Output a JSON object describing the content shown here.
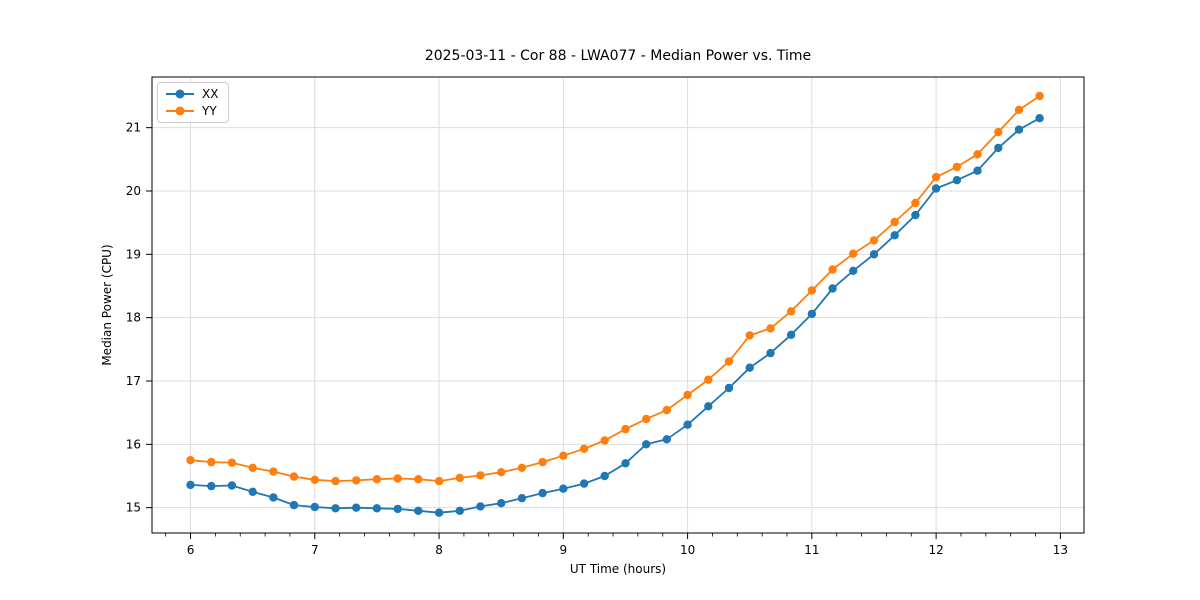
{
  "chart_data": {
    "type": "line",
    "title": "2025-03-11 - Cor 88 - LWA077 - Median Power vs. Time",
    "xlabel": "UT Time (hours)",
    "ylabel": "Median Power (CPU)",
    "xlim": [
      5.69,
      13.19
    ],
    "ylim": [
      14.6,
      21.8
    ],
    "x_ticks": [
      6,
      7,
      8,
      9,
      10,
      11,
      12,
      13
    ],
    "y_ticks": [
      15,
      16,
      17,
      18,
      19,
      20,
      21
    ],
    "x_minor_tick_step": 0.2,
    "grid": true,
    "legend_position": "upper-left",
    "marker": "circle",
    "x": [
      6.0,
      6.167,
      6.333,
      6.5,
      6.667,
      6.833,
      7.0,
      7.167,
      7.333,
      7.5,
      7.667,
      7.833,
      8.0,
      8.167,
      8.333,
      8.5,
      8.667,
      8.833,
      9.0,
      9.167,
      9.333,
      9.5,
      9.667,
      9.833,
      10.0,
      10.167,
      10.333,
      10.5,
      10.667,
      10.833,
      11.0,
      11.167,
      11.333,
      11.5,
      11.667,
      11.833,
      12.0,
      12.167,
      12.333,
      12.5,
      12.667,
      12.833
    ],
    "series": [
      {
        "name": "XX",
        "color": "#1f77b4",
        "values": [
          15.36,
          15.34,
          15.35,
          15.25,
          15.16,
          15.04,
          15.01,
          14.99,
          15.0,
          14.99,
          14.98,
          14.95,
          14.92,
          14.95,
          15.02,
          15.07,
          15.15,
          15.23,
          15.3,
          15.38,
          15.5,
          15.7,
          16.0,
          16.08,
          16.31,
          16.6,
          16.89,
          17.21,
          17.44,
          17.73,
          18.06,
          18.46,
          18.74,
          19.0,
          19.3,
          19.62,
          20.04,
          20.17,
          20.32,
          20.68,
          20.97,
          21.15
        ]
      },
      {
        "name": "YY",
        "color": "#ff7f0e",
        "values": [
          15.75,
          15.72,
          15.71,
          15.63,
          15.57,
          15.49,
          15.44,
          15.42,
          15.43,
          15.45,
          15.46,
          15.45,
          15.42,
          15.47,
          15.51,
          15.56,
          15.63,
          15.72,
          15.82,
          15.93,
          16.06,
          16.24,
          16.4,
          16.54,
          16.78,
          17.02,
          17.31,
          17.72,
          17.83,
          18.1,
          18.43,
          18.76,
          19.01,
          19.22,
          19.51,
          19.81,
          20.22,
          20.38,
          20.58,
          20.93,
          21.28,
          21.5
        ]
      }
    ],
    "colors": {
      "grid": "#dddddd",
      "spine": "#000000",
      "tick_label": "#000000"
    }
  }
}
